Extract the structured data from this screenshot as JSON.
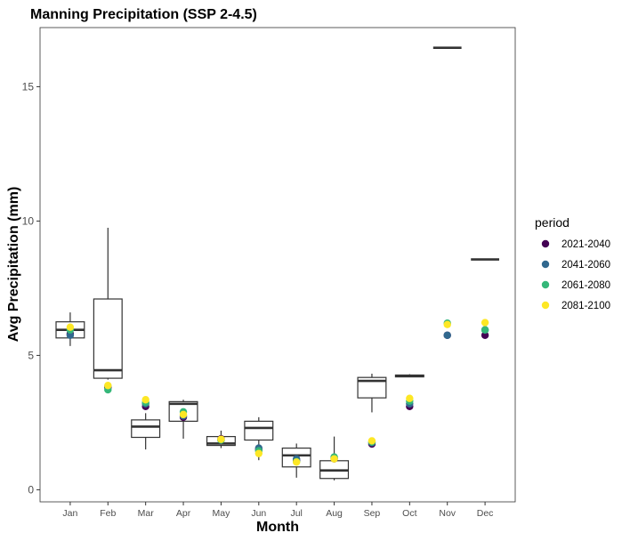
{
  "chart_data": {
    "type": "boxplot",
    "title": "Manning Precipitation (SSP 2-4.5)",
    "xlabel": "Month",
    "ylabel": "Avg Precipitation (mm)",
    "categories": [
      "Jan",
      "Feb",
      "Mar",
      "Apr",
      "May",
      "Jun",
      "Jul",
      "Aug",
      "Sep",
      "Oct",
      "Nov",
      "Dec"
    ],
    "ylim": [
      -0.45,
      17.2
    ],
    "yticks": [
      0,
      5,
      10,
      15
    ],
    "grid": false,
    "boxes": [
      {
        "min": 5.35,
        "q1": 5.65,
        "median": 5.95,
        "q3": 6.25,
        "max": 6.6
      },
      {
        "min": 4.1,
        "q1": 4.15,
        "median": 4.45,
        "q3": 7.1,
        "max": 9.75
      },
      {
        "min": 1.5,
        "q1": 1.95,
        "median": 2.35,
        "q3": 2.6,
        "max": 2.85
      },
      {
        "min": 1.9,
        "q1": 2.55,
        "median": 3.2,
        "q3": 3.28,
        "max": 3.35
      },
      {
        "min": 1.55,
        "q1": 1.65,
        "median": 1.72,
        "q3": 1.98,
        "max": 2.2
      },
      {
        "min": 1.1,
        "q1": 1.85,
        "median": 2.3,
        "q3": 2.55,
        "max": 2.7
      },
      {
        "min": 0.45,
        "q1": 0.85,
        "median": 1.28,
        "q3": 1.55,
        "max": 1.72
      },
      {
        "min": 0.35,
        "q1": 0.42,
        "median": 0.72,
        "q3": 1.08,
        "max": 1.98
      },
      {
        "min": 2.88,
        "q1": 3.42,
        "median": 4.05,
        "q3": 4.18,
        "max": 4.32
      },
      {
        "min": 4.2,
        "q1": 4.2,
        "median": 4.23,
        "q3": 4.27,
        "max": 4.3
      },
      {
        "min": 16.45,
        "q1": 16.45,
        "median": 16.45,
        "q3": 16.45,
        "max": 16.45
      },
      {
        "min": 8.57,
        "q1": 8.57,
        "median": 8.57,
        "q3": 8.57,
        "max": 8.57
      }
    ],
    "legend": {
      "title": "period",
      "position": "right"
    },
    "series": [
      {
        "name": "2021-2040",
        "color": "#440154",
        "values": [
          5.8,
          3.8,
          3.1,
          2.7,
          1.9,
          1.5,
          1.1,
          1.15,
          1.7,
          3.1,
          5.75,
          5.75
        ]
      },
      {
        "name": "2041-2060",
        "color": "#31688e",
        "values": [
          5.75,
          3.85,
          3.2,
          2.75,
          1.85,
          1.55,
          1.15,
          1.2,
          1.75,
          3.2,
          5.75,
          5.95
        ]
      },
      {
        "name": "2061-2080",
        "color": "#35b779",
        "values": [
          5.95,
          3.72,
          3.25,
          2.9,
          1.85,
          1.45,
          1.05,
          1.22,
          1.78,
          3.3,
          6.2,
          5.95
        ]
      },
      {
        "name": "2081-2100",
        "color": "#fde725",
        "values": [
          6.05,
          3.88,
          3.35,
          2.8,
          1.88,
          1.35,
          1.03,
          1.15,
          1.82,
          3.4,
          6.15,
          6.22
        ]
      }
    ]
  }
}
